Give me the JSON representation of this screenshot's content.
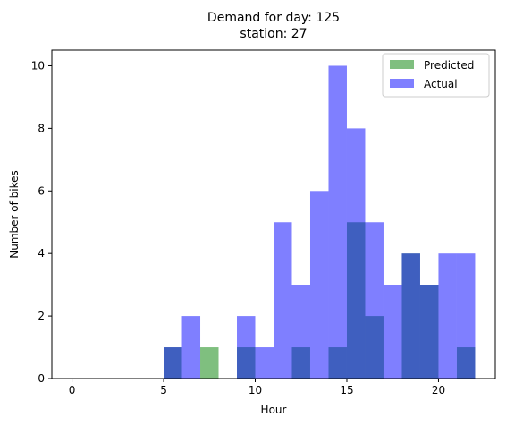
{
  "chart_data": {
    "type": "bar",
    "title_lines": [
      "Demand for day: 125",
      "station: 27"
    ],
    "xlabel": "Hour",
    "ylabel": "Number of bikes",
    "xlim": [
      -1.1,
      23.1
    ],
    "ylim": [
      0,
      10.5
    ],
    "xticks": [
      0,
      5,
      10,
      15,
      20
    ],
    "yticks": [
      0,
      2,
      4,
      6,
      8,
      10
    ],
    "bin_width": 1,
    "bins": [
      0,
      1,
      2,
      3,
      4,
      5,
      6,
      7,
      8,
      9,
      10,
      11,
      12,
      13,
      14,
      15,
      16,
      17,
      18,
      19,
      20,
      21
    ],
    "series": [
      {
        "name": "Predicted",
        "color": "#008000",
        "alpha": 0.5,
        "values": [
          0,
          0,
          0,
          0,
          0,
          1,
          0,
          1,
          0,
          1,
          0,
          0,
          1,
          0,
          1,
          5,
          2,
          0,
          4,
          3,
          0,
          1
        ]
      },
      {
        "name": "Actual",
        "color": "#0000ff",
        "alpha": 0.5,
        "values": [
          0,
          0,
          0,
          0,
          0,
          1,
          2,
          0,
          0,
          2,
          1,
          5,
          3,
          6,
          10,
          8,
          5,
          3,
          4,
          3,
          4,
          4
        ]
      }
    ],
    "legend_position": "top-right",
    "grid": false
  }
}
